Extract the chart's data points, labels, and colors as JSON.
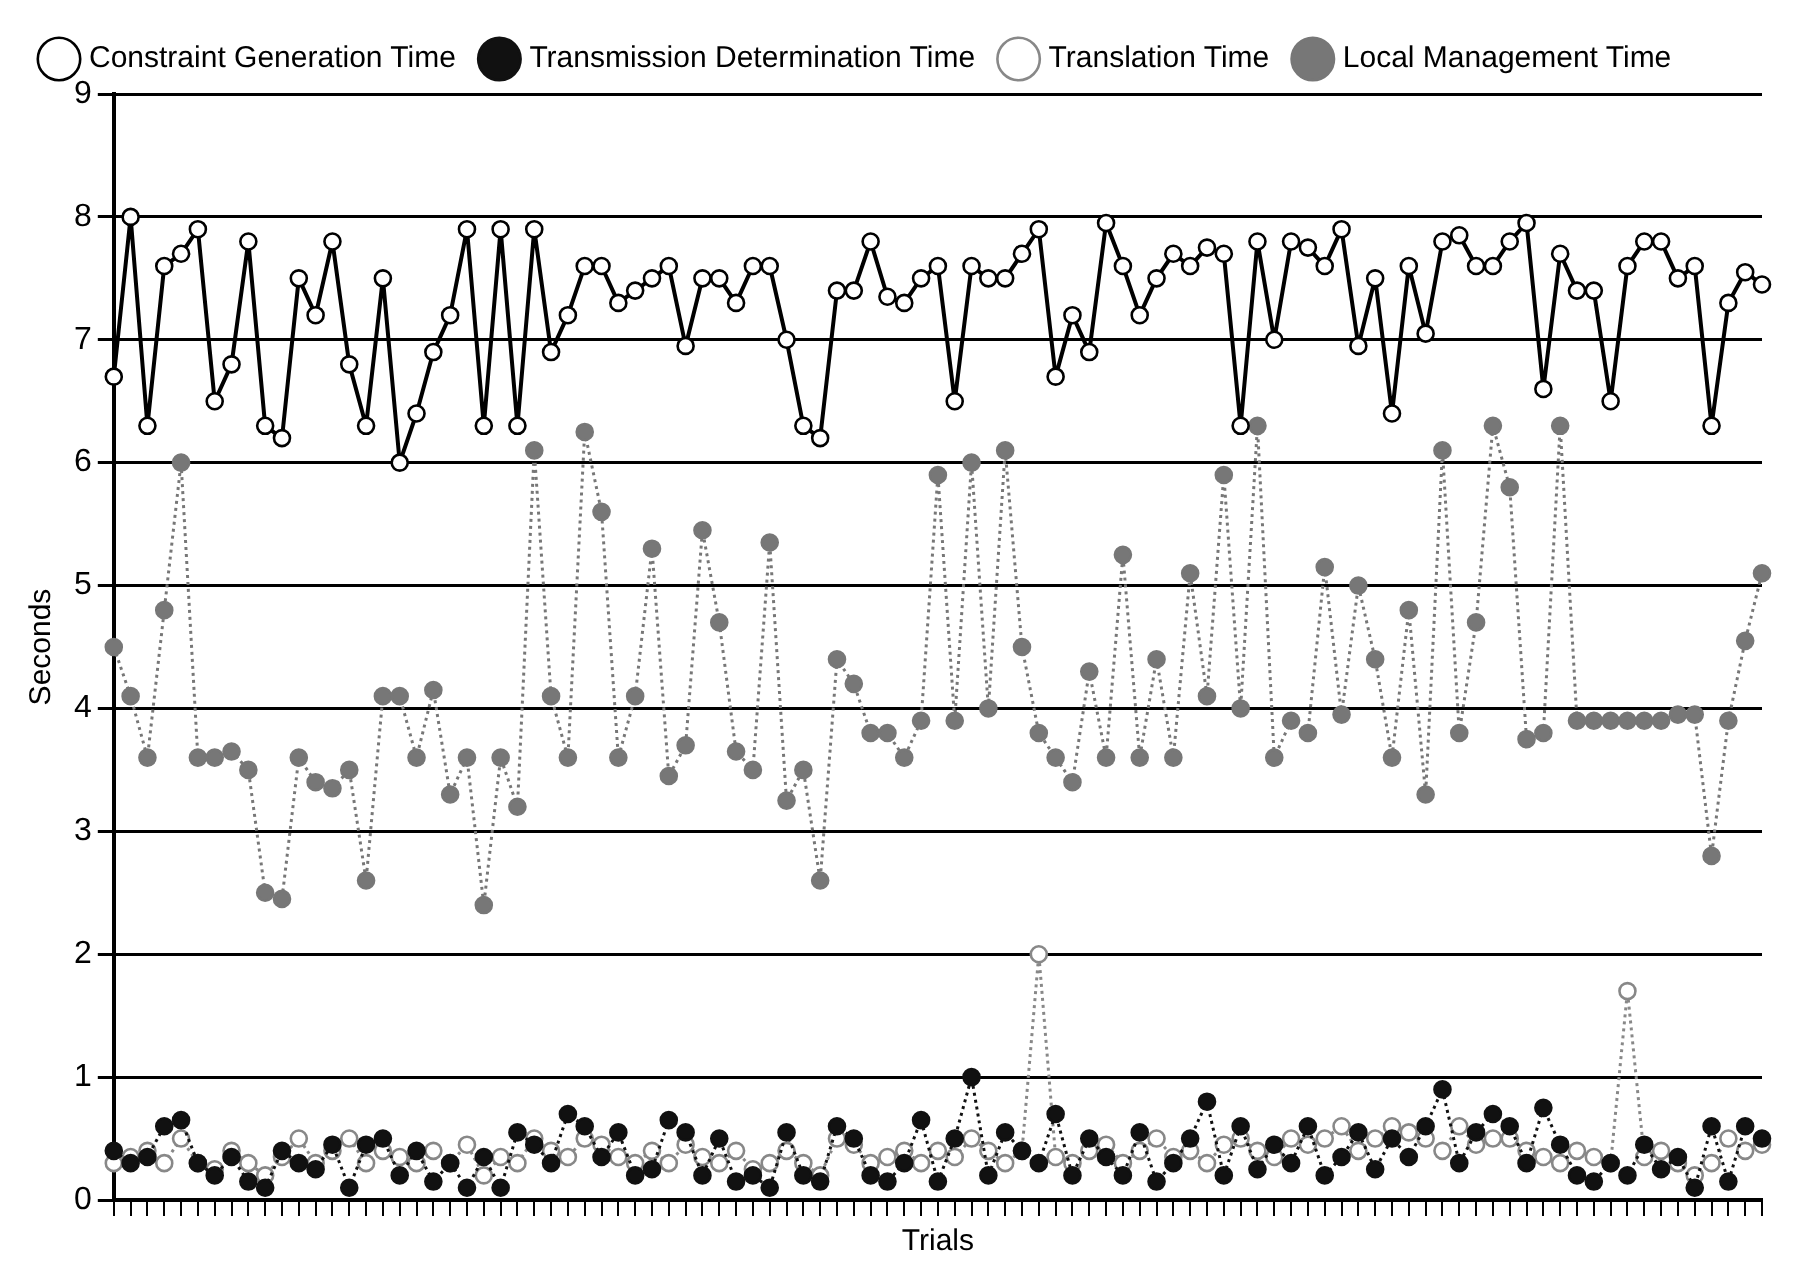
{
  "chart_data": {
    "type": "line",
    "xlabel": "Trials",
    "ylabel": "Seconds",
    "categories": [
      null,
      null,
      null,
      null,
      null,
      null,
      null,
      null,
      null,
      null,
      null,
      null,
      null,
      null,
      null,
      null,
      null,
      null,
      null,
      null,
      null,
      null,
      null,
      null,
      null,
      null,
      null,
      null,
      null,
      null,
      null,
      null,
      null,
      null,
      null,
      null,
      null,
      null,
      null,
      null,
      null,
      null,
      null,
      null,
      null,
      null,
      null,
      null,
      null,
      null,
      null,
      null,
      null,
      null,
      null,
      null,
      null,
      null,
      null,
      null,
      null,
      null,
      null,
      null,
      null,
      null,
      null,
      null,
      null,
      null,
      null,
      null,
      null,
      null,
      null,
      null,
      null,
      null,
      null,
      null,
      null,
      null,
      null,
      null,
      null,
      null,
      null,
      null,
      null,
      null,
      null,
      null,
      null,
      null,
      null,
      null,
      null,
      null,
      null
    ],
    "ylim": [
      0,
      9
    ],
    "yticks": [
      0,
      1,
      2,
      3,
      4,
      5,
      6,
      7,
      8,
      9
    ],
    "grid": "y",
    "tick_labels": "y",
    "legend": "top left",
    "series": [
      {
        "name": "Constraint Generation Time",
        "color": "#000000",
        "marker": "circle",
        "line_style": "solid",
        "values": [
          6.7,
          8.0,
          6.3,
          7.6,
          7.7,
          7.9,
          6.5,
          6.8,
          7.8,
          6.3,
          6.2,
          7.5,
          7.2,
          7.8,
          6.8,
          6.3,
          7.5,
          6.0,
          6.4,
          6.9,
          7.2,
          7.9,
          6.3,
          7.9,
          6.3,
          7.9,
          6.9,
          7.2,
          7.6,
          7.6,
          7.3,
          7.4,
          7.5,
          7.6,
          6.95,
          7.5,
          7.5,
          7.3,
          7.6,
          7.6,
          7.0,
          6.3,
          6.2,
          7.4,
          7.4,
          7.8,
          7.35,
          7.3,
          7.5,
          7.6,
          6.5,
          7.6,
          7.5,
          7.5,
          7.7,
          7.9,
          6.7,
          7.2,
          6.9,
          7.95,
          7.6,
          7.2,
          7.5,
          7.7,
          7.6,
          7.75,
          7.7,
          6.3,
          7.8,
          7.0,
          7.8,
          7.75,
          7.6,
          7.9,
          6.95,
          7.5,
          6.4,
          7.6,
          7.05,
          7.8,
          7.85,
          7.6,
          7.6,
          7.8,
          7.95,
          6.6,
          7.7,
          7.4,
          7.4,
          6.5,
          7.6,
          7.8,
          7.8,
          7.5,
          7.6,
          6.3,
          7.3,
          7.55,
          7.45
        ]
      },
      {
        "name": "Transmission Determination Time",
        "color": "#111111",
        "marker": "circle",
        "line_style": "dotted",
        "values": [
          0.4,
          0.3,
          0.35,
          0.6,
          0.65,
          0.3,
          0.2,
          0.35,
          0.15,
          0.1,
          0.4,
          0.3,
          0.25,
          0.45,
          0.1,
          0.45,
          0.5,
          0.2,
          0.4,
          0.15,
          0.3,
          0.1,
          0.35,
          0.1,
          0.55,
          0.45,
          0.3,
          0.7,
          0.6,
          0.35,
          0.55,
          0.2,
          0.25,
          0.65,
          0.55,
          0.2,
          0.5,
          0.15,
          0.2,
          0.1,
          0.55,
          0.2,
          0.15,
          0.6,
          0.5,
          0.2,
          0.15,
          0.3,
          0.65,
          0.15,
          0.5,
          1.0,
          0.2,
          0.55,
          0.4,
          0.3,
          0.7,
          0.2,
          0.5,
          0.35,
          0.2,
          0.55,
          0.15,
          0.3,
          0.5,
          0.8,
          0.2,
          0.6,
          0.25,
          0.45,
          0.3,
          0.6,
          0.2,
          0.35,
          0.55,
          0.25,
          0.5,
          0.35,
          0.6,
          0.9,
          0.3,
          0.55,
          0.7,
          0.6,
          0.3,
          0.75,
          0.45,
          0.2,
          0.15,
          0.3,
          0.2,
          0.45,
          0.25,
          0.35,
          0.1,
          0.6,
          0.15,
          0.6,
          0.5
        ]
      },
      {
        "name": "Translation Time",
        "color": "#888888",
        "marker": "circle",
        "line_style": "dotted",
        "values": [
          0.3,
          0.35,
          0.4,
          0.3,
          0.5,
          0.3,
          0.25,
          0.4,
          0.3,
          0.2,
          0.35,
          0.5,
          0.3,
          0.4,
          0.5,
          0.3,
          0.4,
          0.35,
          0.3,
          0.4,
          0.3,
          0.45,
          0.2,
          0.35,
          0.3,
          0.5,
          0.4,
          0.35,
          0.5,
          0.45,
          0.35,
          0.3,
          0.4,
          0.3,
          0.45,
          0.35,
          0.3,
          0.4,
          0.25,
          0.3,
          0.4,
          0.3,
          0.2,
          0.5,
          0.45,
          0.3,
          0.35,
          0.4,
          0.3,
          0.4,
          0.35,
          0.5,
          0.4,
          0.3,
          0.4,
          2.0,
          0.35,
          0.3,
          0.4,
          0.45,
          0.3,
          0.4,
          0.5,
          0.35,
          0.4,
          0.3,
          0.45,
          0.5,
          0.4,
          0.35,
          0.5,
          0.45,
          0.5,
          0.6,
          0.4,
          0.5,
          0.6,
          0.55,
          0.5,
          0.4,
          0.6,
          0.45,
          0.5,
          0.5,
          0.4,
          0.35,
          0.3,
          0.4,
          0.35,
          0.3,
          1.7,
          0.35,
          0.4,
          0.3,
          0.2,
          0.3,
          0.5,
          0.4,
          0.45
        ]
      },
      {
        "name": "Local Management Time",
        "color": "#777777",
        "marker": "circle",
        "line_style": "dotted",
        "values": [
          4.5,
          4.1,
          3.6,
          4.8,
          6.0,
          3.6,
          3.6,
          3.65,
          3.5,
          2.5,
          2.45,
          3.6,
          3.4,
          3.35,
          3.5,
          2.6,
          4.1,
          4.1,
          3.6,
          4.15,
          3.3,
          3.6,
          2.4,
          3.6,
          3.2,
          6.1,
          4.1,
          3.6,
          6.25,
          5.6,
          3.6,
          4.1,
          5.3,
          3.45,
          3.7,
          5.45,
          4.7,
          3.65,
          3.5,
          5.35,
          3.25,
          3.5,
          2.6,
          4.4,
          4.2,
          3.8,
          3.8,
          3.6,
          3.9,
          5.9,
          3.9,
          6.0,
          4.0,
          6.1,
          4.5,
          3.8,
          3.6,
          3.4,
          4.3,
          3.6,
          5.25,
          3.6,
          4.4,
          3.6,
          5.1,
          4.1,
          5.9,
          4.0,
          6.3,
          3.6,
          3.9,
          3.8,
          5.15,
          3.95,
          5.0,
          4.4,
          3.6,
          4.8,
          3.3,
          6.1,
          3.8,
          4.7,
          6.3,
          5.8,
          3.75,
          3.8,
          6.3,
          3.9,
          3.9,
          3.9,
          3.9,
          3.9,
          3.9,
          3.95,
          3.95,
          2.8,
          3.9,
          4.55,
          5.1
        ]
      }
    ]
  }
}
